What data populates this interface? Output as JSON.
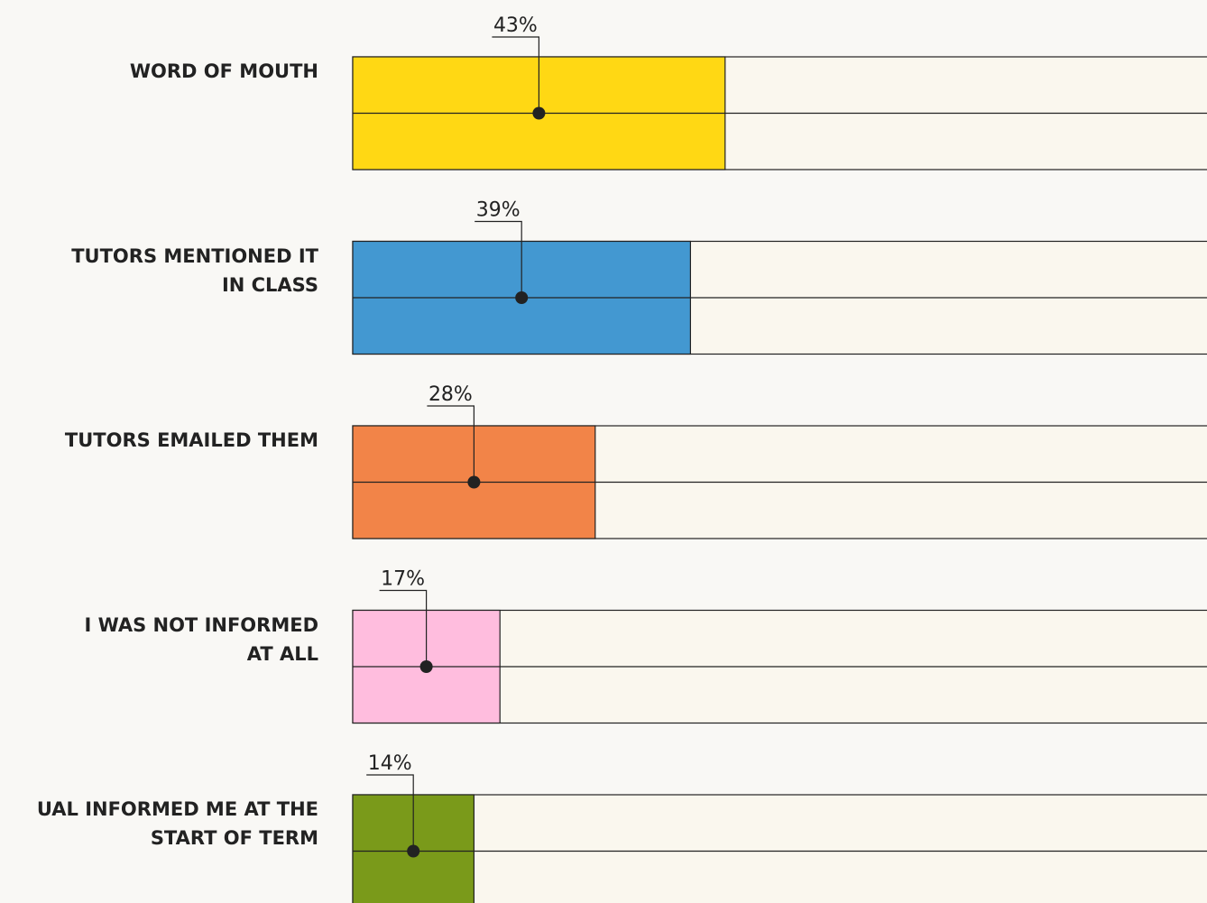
{
  "chart_data": {
    "type": "bar",
    "orientation": "horizontal",
    "categories": [
      "WORD OF MOUTH",
      "TUTORS MENTIONED IT\nIN CLASS",
      "TUTORS EMAILED THEM",
      "I WAS NOT INFORMED\nAT ALL",
      "UAL INFORMED ME AT THE\nSTART OF TERM"
    ],
    "values": [
      43,
      39,
      28,
      17,
      14
    ],
    "value_labels": [
      "43%",
      "39%",
      "28%",
      "17%",
      "14%"
    ],
    "colors": [
      "#ffd814",
      "#4398d1",
      "#f28448",
      "#ffbdde",
      "#7a9a1a"
    ],
    "xlim": [
      0,
      100
    ]
  }
}
